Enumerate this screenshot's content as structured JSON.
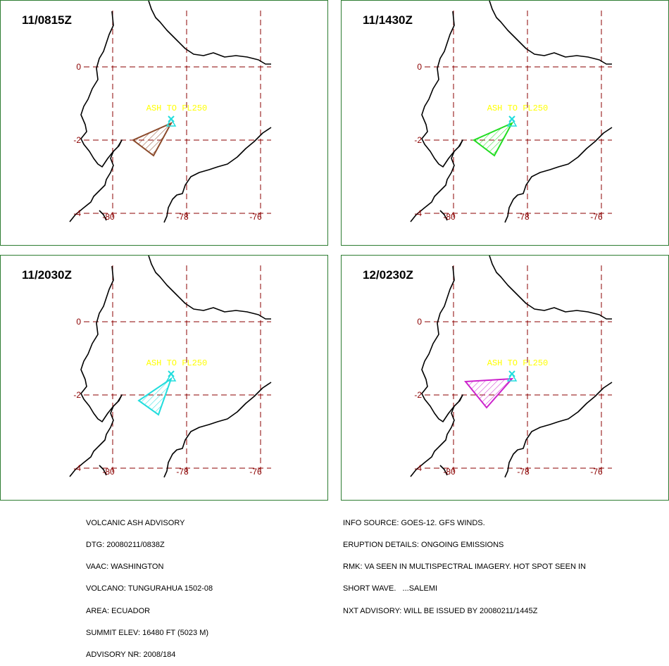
{
  "panels": [
    {
      "time": "11/0815Z",
      "color": "#8b4a2b"
    },
    {
      "time": "11/1430Z",
      "color": "#22dd22"
    },
    {
      "time": "11/2030Z",
      "color": "#22dddd"
    },
    {
      "time": "12/0230Z",
      "color": "#cc22cc"
    }
  ],
  "map": {
    "lat_labels": [
      "0",
      "-2",
      "-4"
    ],
    "lon_labels": [
      "-80",
      "-78",
      "-76"
    ],
    "ash_label": "ASH TO FL250",
    "volcano_color": "#22dddd",
    "label_color": "#ffff00",
    "grid_color": "#8b0000",
    "axis_label_color": "#8b0000"
  },
  "footer_left": [
    "VOLCANIC ASH ADVISORY",
    "DTG: 20080211/0838Z",
    "VAAC: WASHINGTON",
    "VOLCANO: TUNGURAHUA 1502-08",
    "AREA: ECUADOR",
    "SUMMIT ELEV: 16480 FT (5023 M)",
    "ADVISORY NR: 2008/184"
  ],
  "footer_right": [
    "INFO SOURCE: GOES-12. GFS WINDS.",
    "ERUPTION DETAILS: ONGOING EMISSIONS",
    "RMK: VA SEEN IN MULTISPECTRAL IMAGERY. HOT SPOT SEEN IN",
    "SHORT WAVE.   ...SALEMI",
    "NXT ADVISORY: WILL BE ISSUED BY 20080211/1445Z"
  ]
}
